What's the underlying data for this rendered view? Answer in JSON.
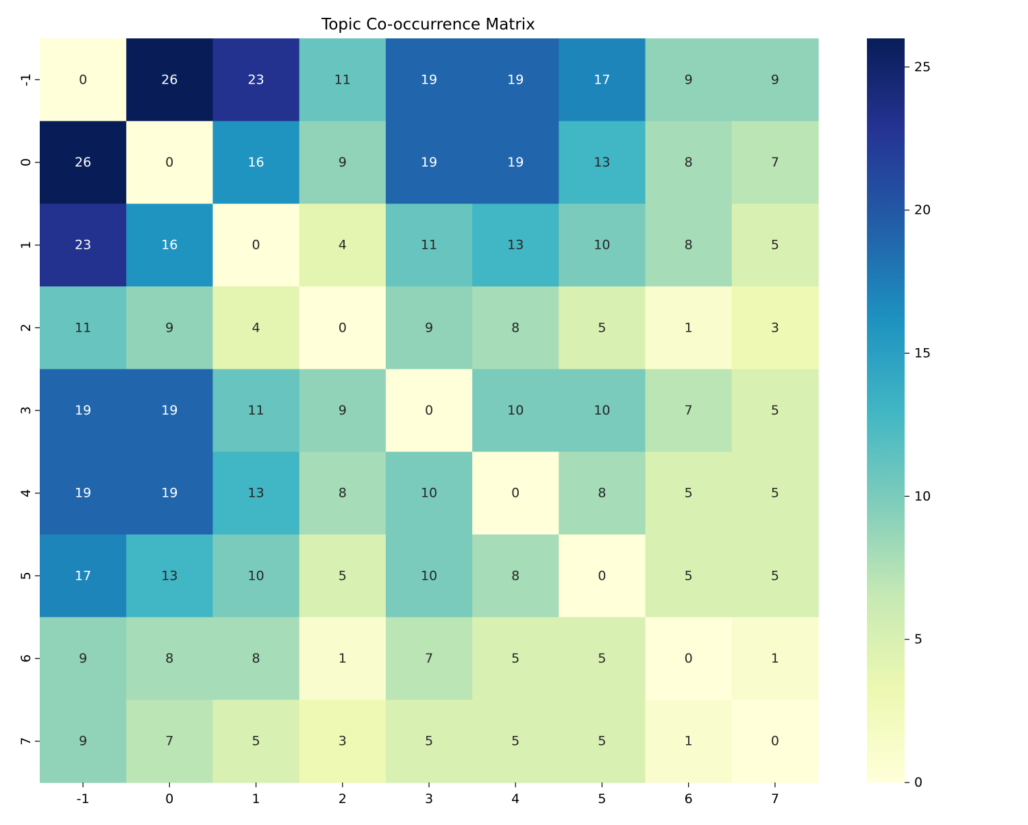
{
  "chart_data": {
    "type": "heatmap",
    "title": "Topic Co-occurrence Matrix",
    "xlabel": "",
    "ylabel": "",
    "x_tick_labels": [
      "-1",
      "0",
      "1",
      "2",
      "3",
      "4",
      "5",
      "6",
      "7"
    ],
    "y_tick_labels": [
      "-1",
      "0",
      "1",
      "2",
      "3",
      "4",
      "5",
      "6",
      "7"
    ],
    "matrix": [
      [
        0,
        26,
        23,
        11,
        19,
        19,
        17,
        9,
        9
      ],
      [
        26,
        0,
        16,
        9,
        19,
        19,
        13,
        8,
        7
      ],
      [
        23,
        16,
        0,
        4,
        11,
        13,
        10,
        8,
        5
      ],
      [
        11,
        9,
        4,
        0,
        9,
        8,
        5,
        1,
        3
      ],
      [
        19,
        19,
        11,
        9,
        0,
        10,
        10,
        7,
        5
      ],
      [
        19,
        19,
        13,
        8,
        10,
        0,
        8,
        5,
        5
      ],
      [
        17,
        13,
        10,
        5,
        10,
        8,
        0,
        5,
        5
      ],
      [
        9,
        8,
        8,
        1,
        7,
        5,
        5,
        0,
        1
      ],
      [
        9,
        7,
        5,
        3,
        5,
        5,
        5,
        1,
        0
      ]
    ],
    "colormap": "YlGnBu",
    "color_range": [
      0,
      26
    ],
    "colorbar_ticks": [
      "0",
      "5",
      "10",
      "15",
      "20",
      "25"
    ],
    "colorbar_tick_values": [
      0,
      5,
      10,
      15,
      20,
      25
    ],
    "annotate": true,
    "colors": {
      "cmap_stops": [
        "#ffffd9",
        "#edf8b1",
        "#c7e9b4",
        "#7fcdbb",
        "#41b6c4",
        "#1d91c0",
        "#225ea8",
        "#253494",
        "#081d58"
      ],
      "text_dark": "#262626",
      "text_light": "#ffffff",
      "axis": "#000000"
    }
  }
}
